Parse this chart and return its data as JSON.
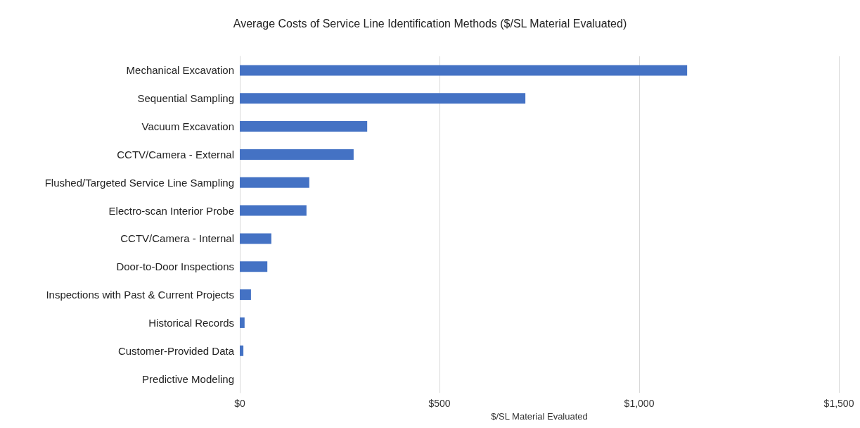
{
  "chart_data": {
    "type": "bar",
    "orientation": "horizontal",
    "title": "Average Costs of Service Line Identification Methods ($/SL Material Evaluated)",
    "xlabel": "$/SL Material Evaluated",
    "categories": [
      "Mechanical Excavation",
      "Sequential Sampling",
      "Vacuum Excavation",
      "CCTV/Camera - External",
      "Flushed/Targeted Service Line Sampling",
      "Electro-scan Interior Probe",
      "CCTV/Camera - Internal",
      "Door-to-Door Inspections",
      "Inspections with Past & Current Projects",
      "Historical Records",
      "Customer-Provided Data",
      "Predictive Modeling"
    ],
    "values": [
      1120,
      715,
      319,
      285,
      174,
      167,
      79,
      69,
      28,
      12,
      9,
      0
    ],
    "color": "#4472c4",
    "xlim": [
      0,
      1500
    ],
    "xticks": [
      {
        "value": 0,
        "label": "$0"
      },
      {
        "value": 500,
        "label": "$500"
      },
      {
        "value": 1000,
        "label": "$1,000"
      },
      {
        "value": 1500,
        "label": "$1,500"
      }
    ],
    "grid": "x"
  }
}
